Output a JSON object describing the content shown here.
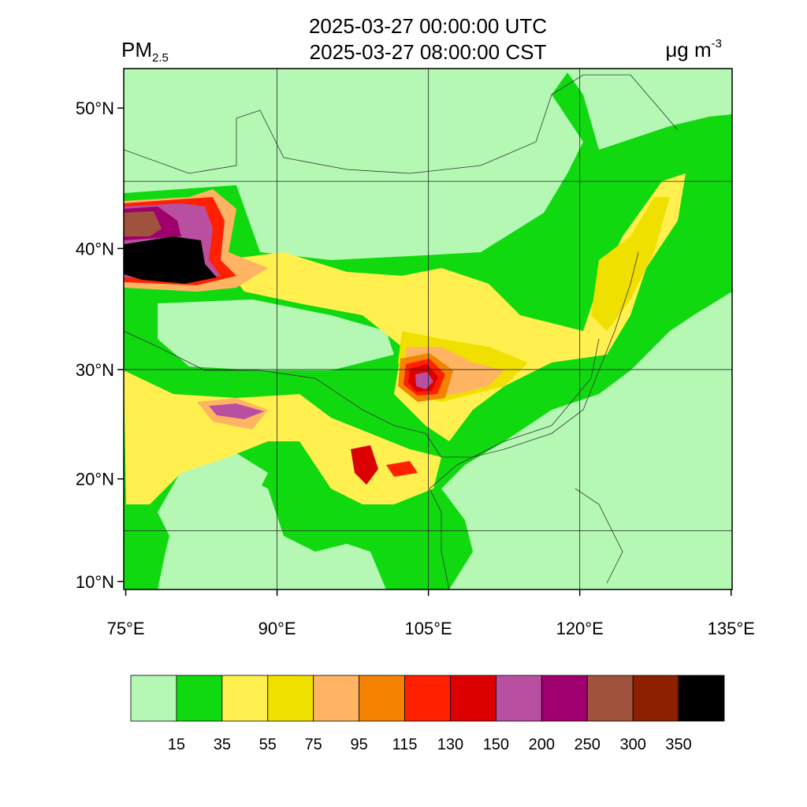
{
  "title_lines": [
    "2025-03-27 00:00:00 UTC",
    "2025-03-27 08:00:00 CST"
  ],
  "variable": {
    "text": "PM",
    "subscript": "2.5"
  },
  "units": {
    "text": "μg m",
    "superscript": "-3"
  },
  "map": {
    "projection": "mercator",
    "lon_range": [
      74.8,
      135.1
    ],
    "lat_range": [
      9.2,
      52.5
    ],
    "lat_ticks": [
      {
        "value": 50,
        "label": "50°N"
      },
      {
        "value": 40,
        "label": "40°N"
      },
      {
        "value": 30,
        "label": "30°N"
      },
      {
        "value": 20,
        "label": "20°N"
      },
      {
        "value": 10,
        "label": "10°N"
      }
    ],
    "lon_ticks": [
      {
        "value": 75,
        "label": "75°E"
      },
      {
        "value": 90,
        "label": "90°E"
      },
      {
        "value": 105,
        "label": "105°E"
      },
      {
        "value": 120,
        "label": "120°E"
      },
      {
        "value": 135,
        "label": "135°E"
      }
    ],
    "grid_lats": [
      15,
      30,
      45
    ],
    "grid_lons": [
      90,
      105,
      120
    ]
  },
  "colorbar": {
    "colors": [
      "#b4f8b4",
      "#10d910",
      "#fff050",
      "#f0e000",
      "#ffb464",
      "#f58200",
      "#ff2000",
      "#dc0000",
      "#b94fa0",
      "#a0006e",
      "#a0523c",
      "#8c2000",
      "#000000"
    ],
    "levels": [
      15,
      35,
      55,
      75,
      95,
      115,
      130,
      150,
      200,
      250,
      300,
      350
    ]
  }
}
